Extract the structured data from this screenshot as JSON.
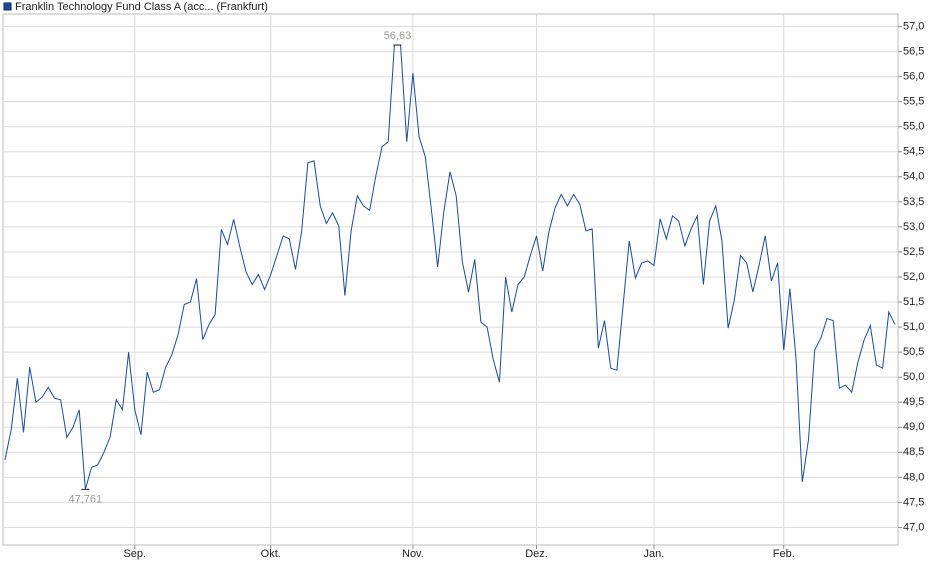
{
  "chart_data": {
    "type": "line",
    "series": [
      {
        "name": "Franklin Technology Fund Class A (acc... (Frankfurt)",
        "color": "#1a4b9c",
        "values": [
          48.35,
          48.95,
          49.98,
          48.9,
          50.2,
          49.5,
          49.6,
          49.8,
          49.58,
          49.55,
          48.8,
          49.0,
          49.35,
          47.761,
          48.2,
          48.25,
          48.5,
          48.8,
          49.55,
          49.35,
          50.5,
          49.35,
          48.85,
          50.1,
          49.7,
          49.75,
          50.2,
          50.45,
          50.85,
          51.45,
          51.5,
          51.97,
          50.75,
          51.05,
          51.25,
          52.95,
          52.65,
          53.15,
          52.6,
          52.1,
          51.85,
          52.05,
          51.75,
          52.05,
          52.43,
          52.82,
          52.76,
          52.15,
          52.92,
          54.28,
          54.32,
          53.42,
          53.07,
          53.28,
          53.02,
          51.63,
          52.92,
          53.62,
          53.42,
          53.33,
          54.02,
          54.6,
          54.7,
          56.63,
          56.63,
          54.7,
          56.07,
          54.8,
          54.4,
          53.33,
          52.2,
          53.3,
          54.1,
          53.62,
          52.3,
          51.7,
          52.35,
          51.1,
          51.0,
          50.35,
          49.9,
          52.0,
          51.3,
          51.85,
          52.0,
          52.43,
          52.82,
          52.12,
          52.9,
          53.38,
          53.65,
          53.42,
          53.65,
          53.45,
          52.92,
          52.96,
          50.58,
          51.13,
          50.18,
          50.14,
          51.43,
          52.72,
          51.98,
          52.28,
          52.32,
          52.23,
          53.16,
          52.76,
          53.22,
          53.12,
          52.62,
          52.96,
          53.22,
          51.85,
          53.12,
          53.42,
          52.72,
          50.98,
          51.54,
          52.43,
          52.28,
          51.7,
          52.23,
          52.82,
          51.92,
          52.28,
          50.54,
          51.77,
          50.34,
          47.91,
          48.75,
          50.54,
          50.78,
          51.17,
          51.13,
          49.78,
          49.84,
          49.7,
          50.3,
          50.74,
          51.03,
          50.24,
          50.18,
          51.3,
          51.05
        ]
      }
    ],
    "categories": [
      null,
      null,
      null,
      null,
      null,
      null,
      null,
      null,
      null,
      null,
      null,
      null,
      null,
      null,
      null,
      null,
      null,
      null,
      null,
      null,
      null,
      "Sep.",
      null,
      null,
      null,
      null,
      null,
      null,
      null,
      null,
      null,
      null,
      null,
      null,
      null,
      null,
      null,
      null,
      null,
      null,
      null,
      null,
      null,
      "Okt.",
      null,
      null,
      null,
      null,
      null,
      null,
      null,
      null,
      null,
      null,
      null,
      null,
      null,
      null,
      null,
      null,
      null,
      null,
      null,
      null,
      null,
      null,
      "Nov.",
      null,
      null,
      null,
      null,
      null,
      null,
      null,
      null,
      null,
      null,
      null,
      null,
      null,
      null,
      null,
      null,
      null,
      null,
      null,
      "Dez.",
      null,
      null,
      null,
      null,
      null,
      null,
      null,
      null,
      null,
      null,
      null,
      null,
      null,
      null,
      null,
      null,
      null,
      null,
      "Jan.",
      null,
      null,
      null,
      null,
      null,
      null,
      null,
      null,
      null,
      null,
      null,
      null,
      null,
      null,
      null,
      null,
      null,
      null,
      null,
      null,
      "Feb.",
      null,
      null,
      null,
      null,
      null,
      null,
      null,
      null,
      null,
      null,
      null,
      null,
      null,
      null,
      null,
      null,
      null,
      null
    ],
    "annotations": [
      {
        "label": "56,63",
        "value": 56.63
      },
      {
        "label": "47,761",
        "value": 47.761
      }
    ],
    "ylim": [
      46.65,
      57.25
    ],
    "yticks": [
      {
        "value": 47,
        "label": "47,0"
      },
      {
        "value": 47.5,
        "label": "47,5"
      },
      {
        "value": 48,
        "label": "48,0"
      },
      {
        "value": 48.5,
        "label": "48,5"
      },
      {
        "value": 49,
        "label": "49,0"
      },
      {
        "value": 49.5,
        "label": "49,5"
      },
      {
        "value": 50,
        "label": "50,0"
      },
      {
        "value": 50.5,
        "label": "50,5"
      },
      {
        "value": 51,
        "label": "51,0"
      },
      {
        "value": 51.5,
        "label": "51,5"
      },
      {
        "value": 52,
        "label": "52,0"
      },
      {
        "value": 52.5,
        "label": "52,5"
      },
      {
        "value": 53,
        "label": "53,0"
      },
      {
        "value": 53.5,
        "label": "53,5"
      },
      {
        "value": 54,
        "label": "54,0"
      },
      {
        "value": 54.5,
        "label": "54,5"
      },
      {
        "value": 55,
        "label": "55,0"
      },
      {
        "value": 55.5,
        "label": "55,5"
      },
      {
        "value": 56,
        "label": "56,0"
      },
      {
        "value": 56.5,
        "label": "56,5"
      },
      {
        "value": 57,
        "label": "57,0"
      }
    ],
    "grid": true
  }
}
